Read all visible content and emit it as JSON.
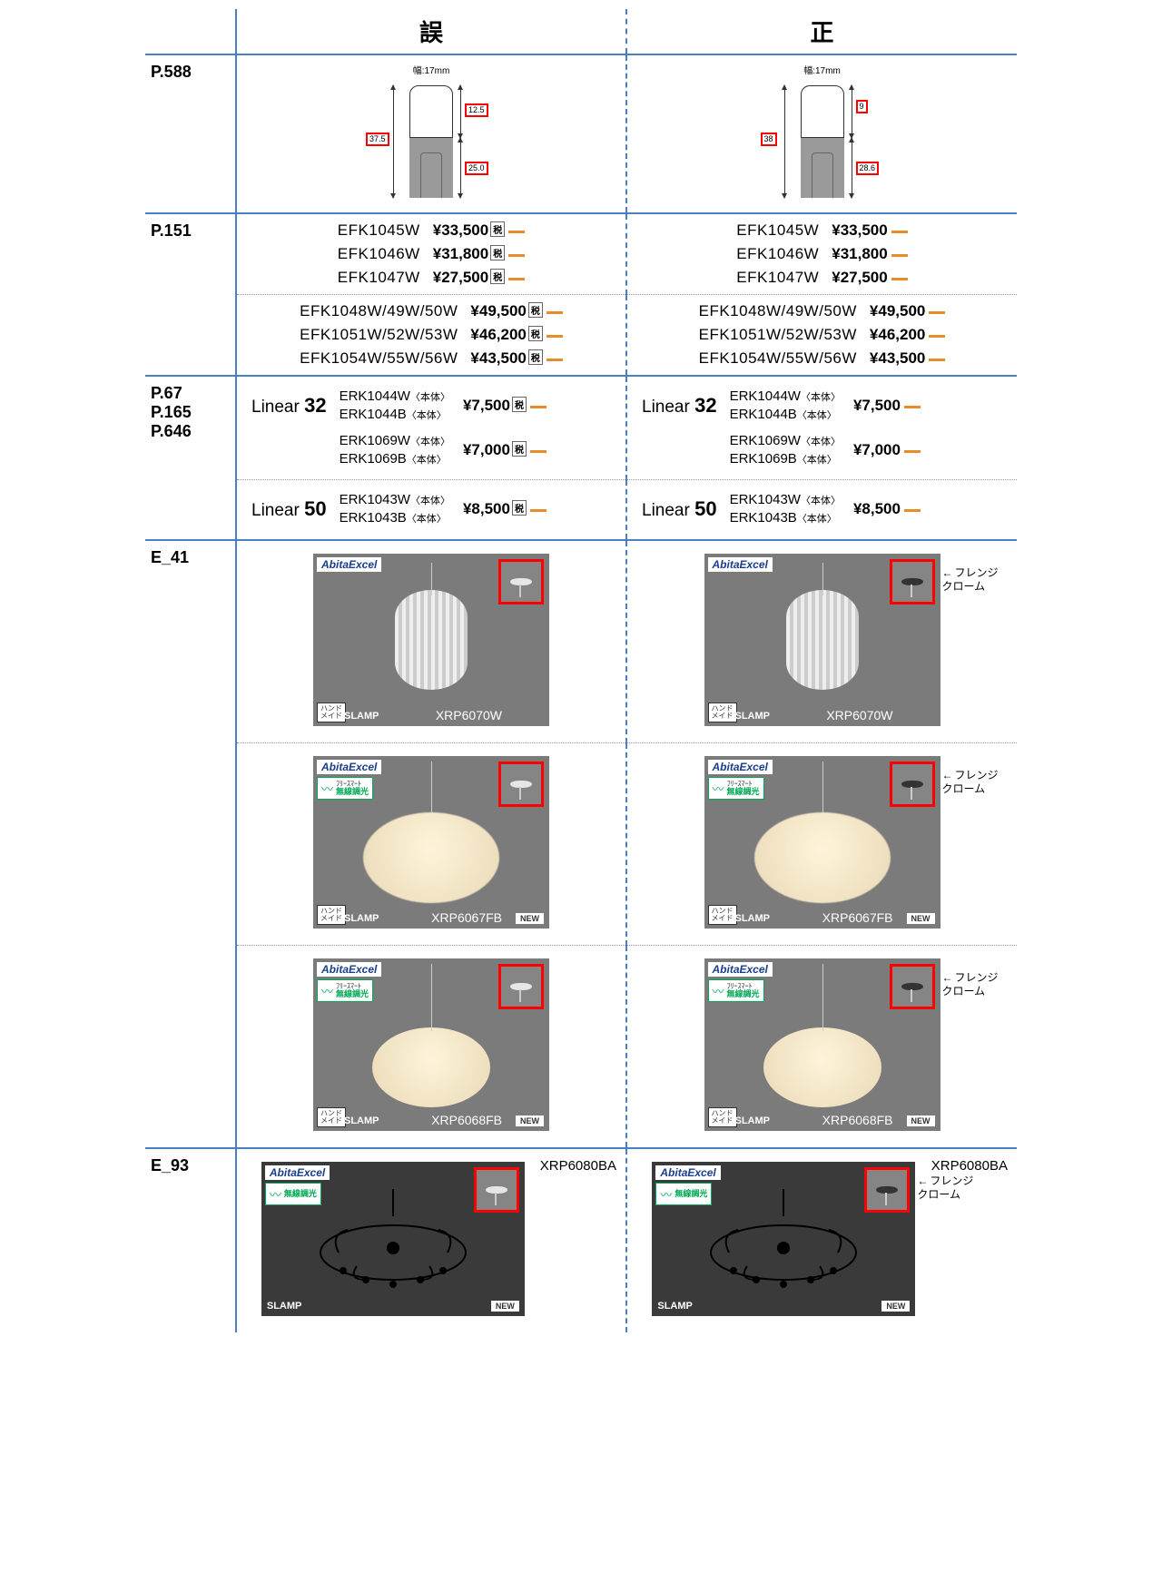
{
  "headers": {
    "err": "誤",
    "cor": "正"
  },
  "rows": {
    "r588": {
      "page": "P.588",
      "width_label": "幅:17mm",
      "err": {
        "height_total": "37.5",
        "height_top": "12.5",
        "height_bottom": "25.0"
      },
      "cor": {
        "height_total": "38",
        "height_top": "9",
        "height_bottom": "28.6"
      }
    },
    "r151": {
      "page": "P.151",
      "grp1": [
        {
          "code": "EFK1045W",
          "price": "¥33,500"
        },
        {
          "code": "EFK1046W",
          "price": "¥31,800"
        },
        {
          "code": "EFK1047W",
          "price": "¥27,500"
        }
      ],
      "grp2": [
        {
          "code": "EFK1048W/49W/50W",
          "price": "¥49,500"
        },
        {
          "code": "EFK1051W/52W/53W",
          "price": "¥46,200"
        },
        {
          "code": "EFK1054W/55W/56W",
          "price": "¥43,500"
        }
      ],
      "tax_char": "税"
    },
    "r67": {
      "pages": [
        "P.67",
        "P.165",
        "P.646"
      ],
      "g1": {
        "label_pre": "Linear ",
        "label_num": "32",
        "pairs": [
          {
            "codes": [
              "ERK1044W",
              "ERK1044B"
            ],
            "price": "¥7,500"
          },
          {
            "codes": [
              "ERK1069W",
              "ERK1069B"
            ],
            "price": "¥7,000"
          }
        ]
      },
      "g2": {
        "label_pre": "Linear ",
        "label_num": "50",
        "pairs": [
          {
            "codes": [
              "ERK1043W",
              "ERK1043B"
            ],
            "price": "¥8,500"
          }
        ]
      },
      "honsha": "〈本体〉",
      "tax_char": "税"
    },
    "e41": {
      "page": "E_41",
      "abita": "AbitaExcel",
      "wireless_en": "ﾌﾘｰｽﾏｰﾄ",
      "wireless_jp": "無線調光",
      "hand": "ハンド\nメイド",
      "slamp": "SLAMP",
      "new": "NEW",
      "flange_note": "フレンジ\nクローム",
      "tiles": [
        {
          "code": "XRP6070W",
          "has_wireless": false,
          "has_new": false,
          "pendant": 1
        },
        {
          "code": "XRP6067FB",
          "has_wireless": true,
          "has_new": true,
          "pendant": 2
        },
        {
          "code": "XRP6068FB",
          "has_wireless": true,
          "has_new": true,
          "pendant": 3
        }
      ]
    },
    "e93": {
      "page": "E_93",
      "abita": "AbitaExcel",
      "wireless_jp": "無線調光",
      "slamp": "SLAMP",
      "new": "NEW",
      "code": "XRP6080BA",
      "flange_note": "フレンジ\nクローム"
    }
  }
}
